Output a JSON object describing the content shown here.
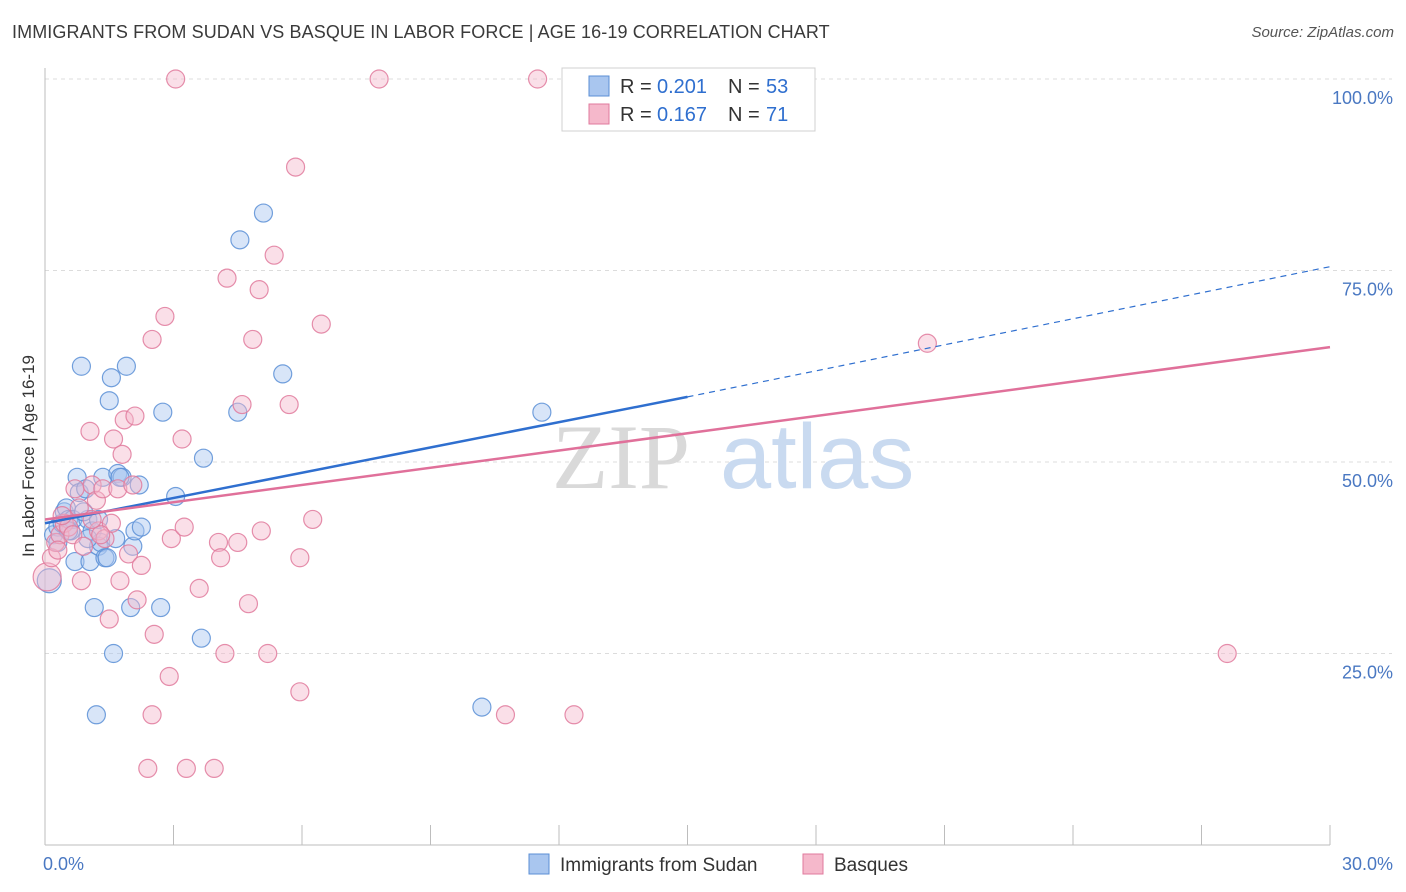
{
  "title": "IMMIGRANTS FROM SUDAN VS BASQUE IN LABOR FORCE | AGE 16-19 CORRELATION CHART",
  "source": "Source: ZipAtlas.com",
  "watermark": {
    "zip": "ZIP",
    "atlas": "atlas"
  },
  "colors": {
    "blue_fill": "#a9c6ef",
    "blue_stroke": "#5b8fd6",
    "blue_line": "#2f6fcf",
    "pink_fill": "#f5b8cb",
    "pink_stroke": "#e07a9c",
    "pink_line": "#e0709a",
    "grid": "#dcdcdc",
    "tick_text": "#4a78c2"
  },
  "legend": {
    "rows": [
      {
        "r_label": "R =",
        "r_value": "0.201",
        "n_label": "N =",
        "n_value": "53"
      },
      {
        "r_label": "R =",
        "r_value": "0.167",
        "n_label": "N =",
        "n_value": "71"
      }
    ]
  },
  "chart_data": {
    "type": "scatter",
    "title": "IMMIGRANTS FROM SUDAN VS BASQUE IN LABOR FORCE | AGE 16-19 CORRELATION CHART",
    "xlabel": "",
    "ylabel": "In Labor Force | Age 16-19",
    "xlim": [
      0,
      30
    ],
    "ylim": [
      0,
      100
    ],
    "x_tick_labels": [
      "0.0%",
      "30.0%"
    ],
    "y_ticks": [
      25,
      50,
      75,
      100
    ],
    "y_tick_labels": [
      "25.0%",
      "50.0%",
      "75.0%",
      "100.0%"
    ],
    "grid": true,
    "legend_position": "top-center",
    "series": [
      {
        "name": "Immigrants from Sudan",
        "r": 0.201,
        "n": 53,
        "trend": {
          "x0": 0,
          "y0": 42.0,
          "x1": 15,
          "y1": 58.5,
          "dash_to_x": 30,
          "dash_to_y": 75.5
        },
        "points": [
          [
            0.1,
            34.5
          ],
          [
            0.2,
            40.5
          ],
          [
            0.3,
            41.5
          ],
          [
            0.4,
            42.0
          ],
          [
            0.45,
            43.5
          ],
          [
            0.5,
            44.0
          ],
          [
            0.55,
            42.5
          ],
          [
            0.6,
            41.0
          ],
          [
            0.65,
            42.5
          ],
          [
            0.7,
            37.0
          ],
          [
            0.75,
            48.0
          ],
          [
            0.8,
            46.0
          ],
          [
            0.85,
            62.5
          ],
          [
            1.0,
            42.5
          ],
          [
            1.05,
            37.0
          ],
          [
            1.1,
            41.0
          ],
          [
            1.15,
            31.0
          ],
          [
            1.2,
            17.0
          ],
          [
            1.25,
            39.0
          ],
          [
            1.3,
            39.5
          ],
          [
            1.35,
            48.0
          ],
          [
            1.4,
            37.5
          ],
          [
            1.45,
            37.5
          ],
          [
            1.5,
            58.0
          ],
          [
            1.55,
            61.0
          ],
          [
            1.6,
            25.0
          ],
          [
            1.65,
            40.0
          ],
          [
            1.7,
            48.5
          ],
          [
            1.8,
            48.0
          ],
          [
            1.9,
            62.5
          ],
          [
            2.0,
            31.0
          ],
          [
            2.05,
            39.0
          ],
          [
            2.1,
            41.0
          ],
          [
            2.2,
            47.0
          ],
          [
            2.7,
            31.0
          ],
          [
            2.75,
            56.5
          ],
          [
            3.05,
            45.5
          ],
          [
            3.65,
            27.0
          ],
          [
            3.7,
            50.5
          ],
          [
            4.5,
            56.5
          ],
          [
            4.55,
            79.0
          ],
          [
            5.1,
            82.5
          ],
          [
            5.55,
            61.5
          ],
          [
            10.2,
            18.0
          ],
          [
            11.6,
            56.5
          ],
          [
            1.75,
            48.0
          ],
          [
            0.95,
            46.5
          ],
          [
            1.0,
            40.0
          ],
          [
            0.3,
            39.5
          ],
          [
            0.55,
            41.0
          ],
          [
            1.25,
            42.5
          ],
          [
            0.9,
            43.5
          ],
          [
            2.25,
            41.5
          ]
        ]
      },
      {
        "name": "Basques",
        "r": 0.167,
        "n": 71,
        "trend": {
          "x0": 0,
          "y0": 42.5,
          "x1": 30,
          "y1": 65.0
        },
        "points": [
          [
            0.05,
            35.0
          ],
          [
            0.15,
            37.5
          ],
          [
            0.25,
            39.5
          ],
          [
            0.35,
            40.5
          ],
          [
            0.45,
            42.0
          ],
          [
            0.55,
            41.5
          ],
          [
            0.65,
            40.5
          ],
          [
            0.7,
            46.5
          ],
          [
            0.8,
            44.0
          ],
          [
            0.85,
            34.5
          ],
          [
            0.9,
            39.0
          ],
          [
            1.05,
            54.0
          ],
          [
            1.1,
            47.0
          ],
          [
            1.2,
            45.0
          ],
          [
            1.25,
            41.0
          ],
          [
            1.35,
            46.5
          ],
          [
            1.4,
            40.0
          ],
          [
            1.5,
            29.5
          ],
          [
            1.55,
            42.0
          ],
          [
            1.6,
            53.0
          ],
          [
            1.7,
            46.5
          ],
          [
            1.75,
            34.5
          ],
          [
            1.8,
            51.0
          ],
          [
            1.85,
            55.5
          ],
          [
            1.95,
            38.0
          ],
          [
            2.05,
            47.0
          ],
          [
            2.1,
            56.0
          ],
          [
            2.15,
            32.0
          ],
          [
            2.25,
            36.5
          ],
          [
            2.4,
            10.0
          ],
          [
            2.5,
            17.0
          ],
          [
            2.5,
            66.0
          ],
          [
            2.55,
            27.5
          ],
          [
            2.8,
            69.0
          ],
          [
            2.9,
            22.0
          ],
          [
            2.95,
            40.0
          ],
          [
            3.05,
            100.0
          ],
          [
            3.2,
            53.0
          ],
          [
            3.25,
            41.5
          ],
          [
            3.3,
            10.0
          ],
          [
            3.6,
            33.5
          ],
          [
            3.95,
            10.0
          ],
          [
            4.05,
            39.5
          ],
          [
            4.1,
            37.5
          ],
          [
            4.2,
            25.0
          ],
          [
            4.25,
            74.0
          ],
          [
            4.5,
            39.5
          ],
          [
            4.6,
            57.5
          ],
          [
            4.75,
            31.5
          ],
          [
            4.85,
            66.0
          ],
          [
            5.0,
            72.5
          ],
          [
            5.05,
            41.0
          ],
          [
            5.2,
            25.0
          ],
          [
            5.35,
            77.0
          ],
          [
            5.7,
            57.5
          ],
          [
            5.85,
            88.5
          ],
          [
            5.95,
            20.0
          ],
          [
            5.95,
            37.5
          ],
          [
            6.25,
            42.5
          ],
          [
            6.45,
            68.0
          ],
          [
            7.8,
            100.0
          ],
          [
            10.75,
            17.0
          ],
          [
            11.5,
            100.0
          ],
          [
            12.35,
            17.0
          ],
          [
            15.0,
            100.0
          ],
          [
            20.6,
            65.5
          ],
          [
            27.6,
            25.0
          ],
          [
            0.4,
            43.0
          ],
          [
            1.3,
            40.5
          ],
          [
            0.3,
            38.5
          ],
          [
            1.1,
            42.5
          ]
        ]
      }
    ]
  }
}
